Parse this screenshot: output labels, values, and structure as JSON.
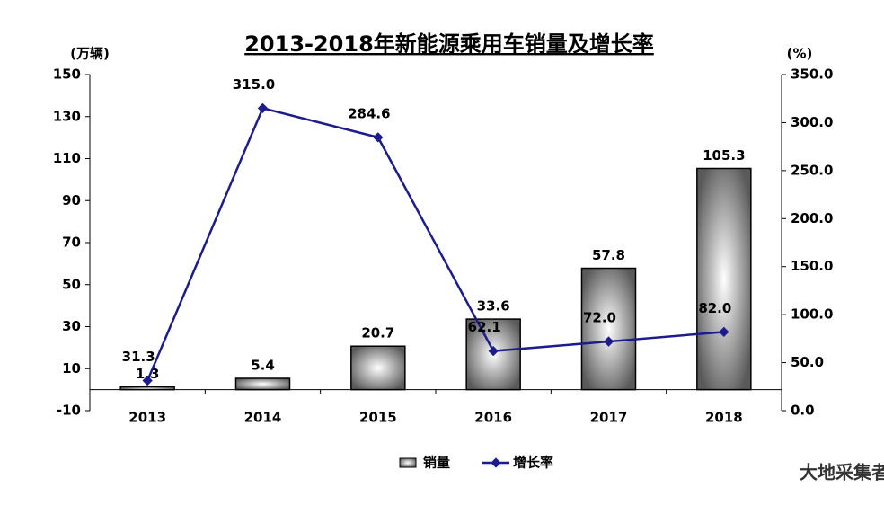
{
  "chart_data": {
    "type": "bar_line",
    "title": "2013-2018年新能源乘用车销量及增长率",
    "y_label": "(万辆)",
    "y2_label": "(%)",
    "categories": [
      "2013",
      "2014",
      "2015",
      "2016",
      "2017",
      "2018"
    ],
    "series": [
      {
        "name": "销量",
        "type": "bar",
        "color": "#808080",
        "values": [
          1.3,
          5.4,
          20.7,
          33.6,
          57.8,
          105.3
        ]
      },
      {
        "name": "增长率",
        "type": "line",
        "axis": "y2",
        "color": "#1c1c8c",
        "values": [
          31.3,
          315.0,
          284.6,
          62.1,
          72.0,
          82.0
        ],
        "value_labels": [
          "31.3",
          "315.0",
          "284.6",
          "62.1",
          "72.0",
          "82.0"
        ]
      }
    ],
    "ylim": [
      -10,
      150
    ],
    "yticks": [
      -10,
      10,
      30,
      50,
      70,
      90,
      110,
      130,
      150
    ],
    "y2lim": [
      0,
      350
    ],
    "y2ticks": [
      {
        "value": 0,
        "label": "0.0"
      },
      {
        "value": 50,
        "label": "50.0"
      },
      {
        "value": 100,
        "label": "100.0"
      },
      {
        "value": 150,
        "label": "150.0"
      },
      {
        "value": 200,
        "label": "200.0"
      },
      {
        "value": 250,
        "label": "250.0"
      },
      {
        "value": 300,
        "label": "300.0"
      },
      {
        "value": 350,
        "label": "350.0"
      }
    ],
    "watermark": "大地采集者"
  }
}
